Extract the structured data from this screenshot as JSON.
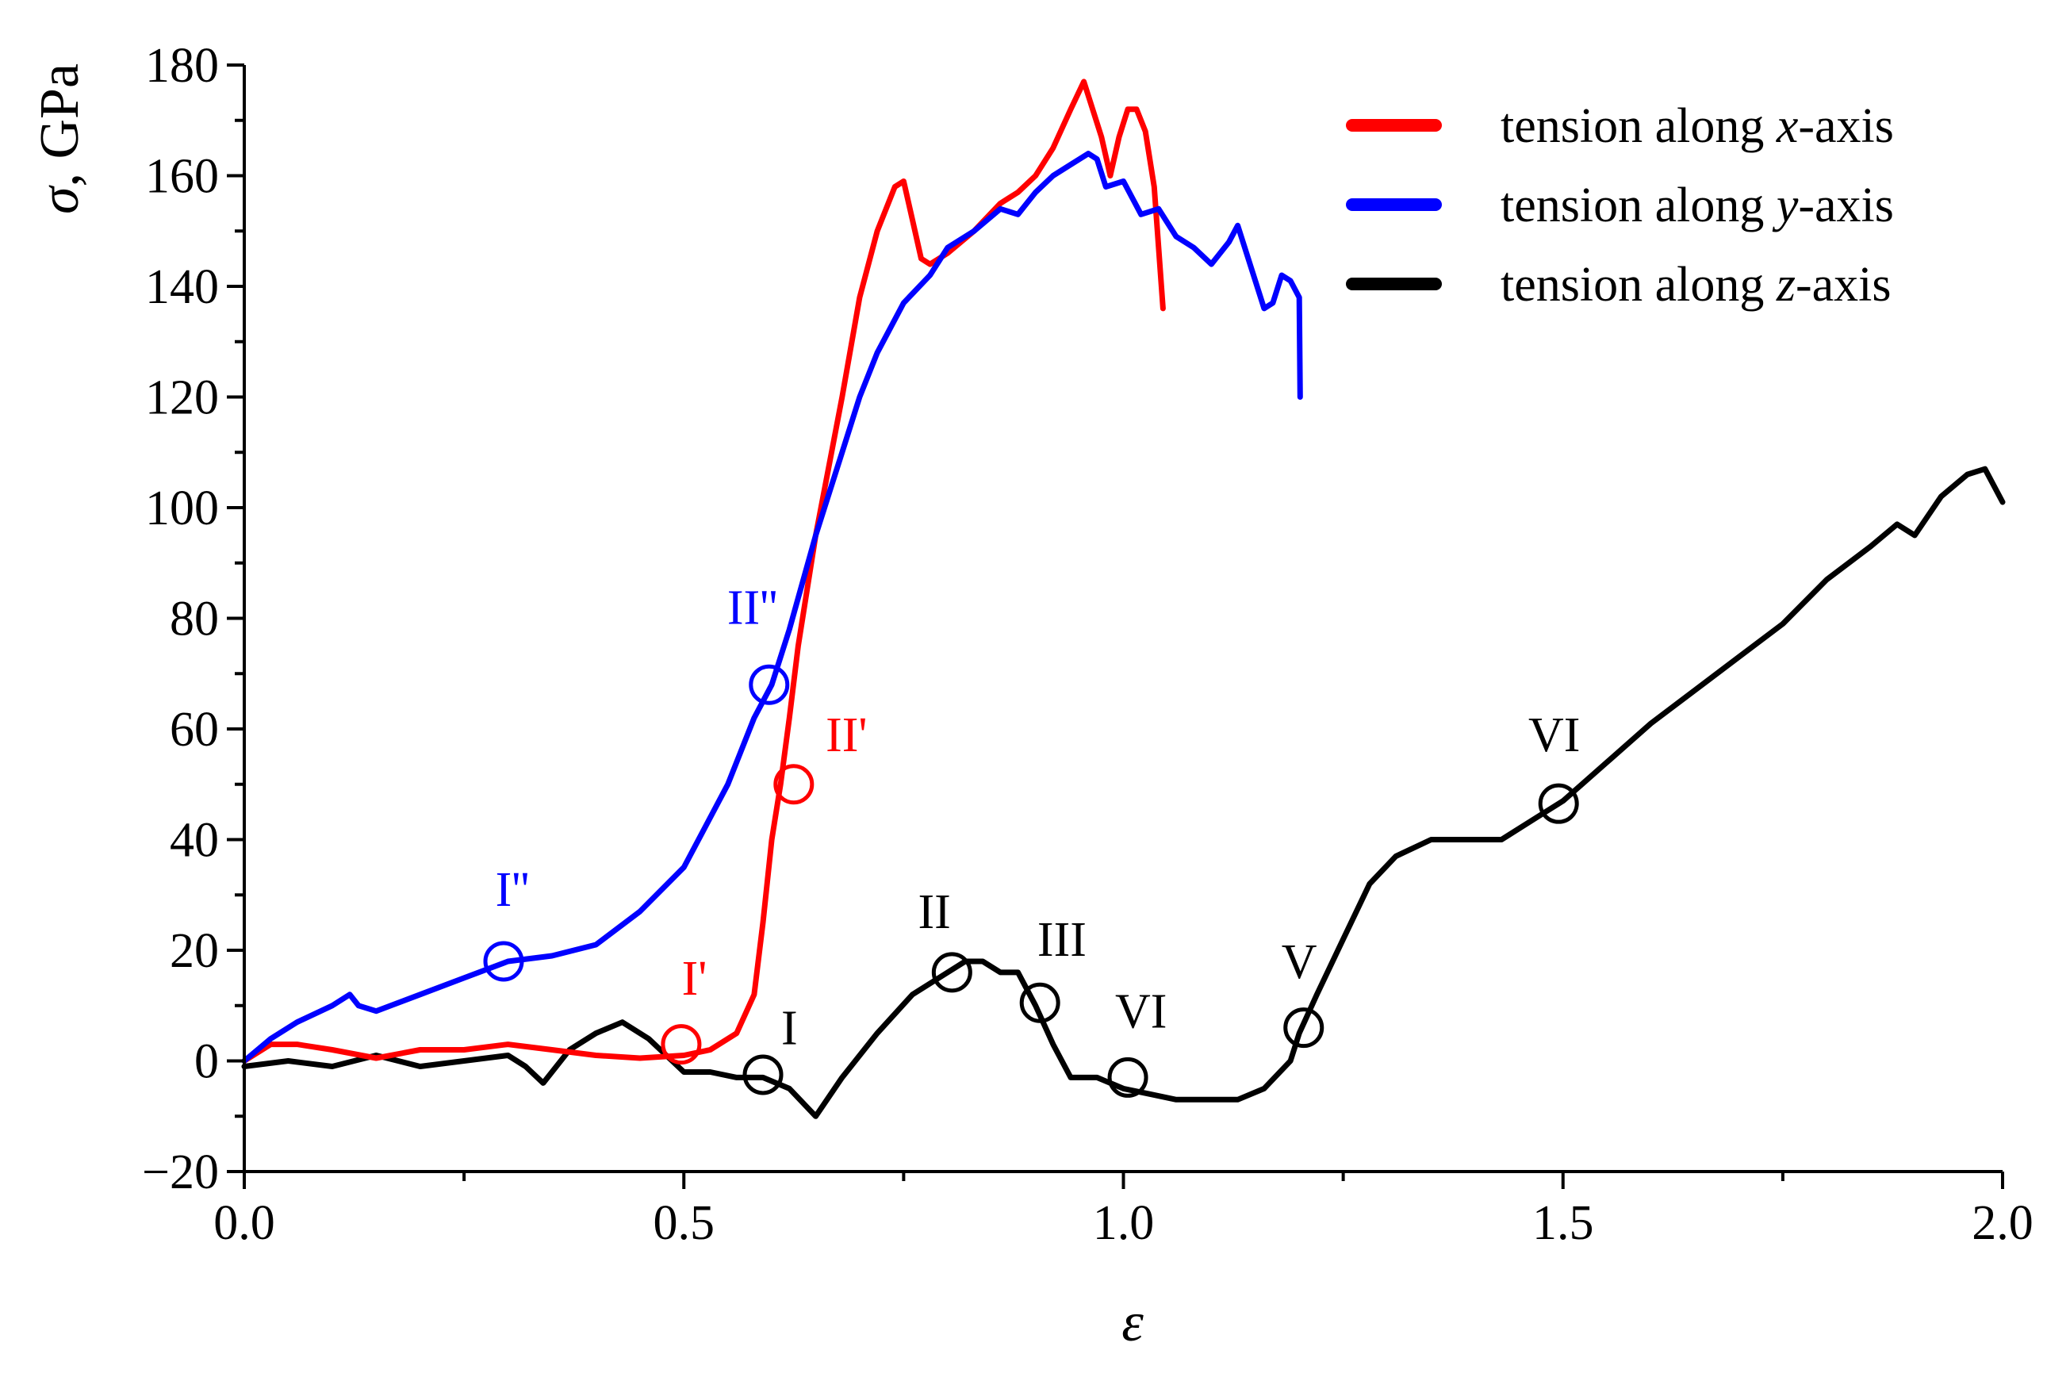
{
  "chart_data": {
    "type": "line",
    "xlabel": "ε",
    "ylabel_symbol": "σ",
    "ylabel_unit": ", GPa",
    "xlim": [
      0.0,
      2.0
    ],
    "ylim": [
      -20,
      180
    ],
    "x_ticks": [
      0.0,
      0.5,
      1.0,
      1.5,
      2.0
    ],
    "x_tick_labels": [
      "0.0",
      "0.5",
      "1.0",
      "1.5",
      "2.0"
    ],
    "y_ticks": [
      -20,
      0,
      20,
      40,
      60,
      80,
      100,
      120,
      140,
      160,
      180
    ],
    "y_tick_labels": [
      "−20",
      "0",
      "20",
      "40",
      "60",
      "80",
      "100",
      "120",
      "140",
      "160",
      "180"
    ],
    "grid": false,
    "legend_position": "top-right",
    "legend": [
      {
        "prefix": "tension along ",
        "axis": "x",
        "suffix": "-axis",
        "color": "#ff0000"
      },
      {
        "prefix": "tension along ",
        "axis": "y",
        "suffix": "-axis",
        "color": "#0000ff"
      },
      {
        "prefix": "tension along ",
        "axis": "z",
        "suffix": "-axis",
        "color": "#000000"
      }
    ],
    "series": [
      {
        "color": "#ff0000",
        "x": [
          0.0,
          0.03,
          0.06,
          0.1,
          0.15,
          0.2,
          0.25,
          0.3,
          0.35,
          0.4,
          0.45,
          0.5,
          0.53,
          0.56,
          0.58,
          0.59,
          0.6,
          0.61,
          0.62,
          0.63,
          0.65,
          0.68,
          0.7,
          0.72,
          0.74,
          0.75,
          0.76,
          0.77,
          0.78,
          0.8,
          0.83,
          0.86,
          0.88,
          0.9,
          0.92,
          0.94,
          0.955,
          0.965,
          0.975,
          0.985,
          0.995,
          1.005,
          1.015,
          1.025,
          1.035,
          1.045
        ],
        "y": [
          0,
          3,
          3,
          2,
          0.5,
          2,
          2,
          3,
          2,
          1,
          0.5,
          1,
          2,
          5,
          12,
          25,
          40,
          50,
          62,
          75,
          95,
          120,
          138,
          150,
          158,
          159,
          152,
          145,
          144,
          146,
          150,
          155,
          157,
          160,
          165,
          172,
          177,
          172,
          167,
          160,
          167,
          172,
          172,
          168,
          158,
          136
        ]
      },
      {
        "color": "#0000ff",
        "x": [
          0.0,
          0.03,
          0.06,
          0.1,
          0.12,
          0.13,
          0.15,
          0.2,
          0.25,
          0.3,
          0.35,
          0.4,
          0.45,
          0.5,
          0.55,
          0.58,
          0.6,
          0.62,
          0.65,
          0.68,
          0.7,
          0.72,
          0.75,
          0.78,
          0.8,
          0.83,
          0.86,
          0.88,
          0.9,
          0.92,
          0.94,
          0.96,
          0.97,
          0.98,
          1.0,
          1.02,
          1.04,
          1.06,
          1.08,
          1.1,
          1.12,
          1.13,
          1.14,
          1.16,
          1.17,
          1.18,
          1.19,
          1.2,
          1.201
        ],
        "y": [
          0,
          4,
          7,
          10,
          12,
          10,
          9,
          12,
          15,
          18,
          19,
          21,
          27,
          35,
          50,
          62,
          68,
          78,
          95,
          110,
          120,
          128,
          137,
          142,
          147,
          150,
          154,
          153,
          157,
          160,
          162,
          164,
          163,
          158,
          159,
          153,
          154,
          149,
          147,
          144,
          148,
          151,
          146,
          136,
          137,
          142,
          141,
          138,
          120
        ]
      },
      {
        "color": "#000000",
        "x": [
          0.0,
          0.05,
          0.1,
          0.15,
          0.2,
          0.25,
          0.3,
          0.32,
          0.34,
          0.37,
          0.4,
          0.43,
          0.46,
          0.48,
          0.5,
          0.53,
          0.56,
          0.59,
          0.62,
          0.65,
          0.68,
          0.72,
          0.76,
          0.8,
          0.82,
          0.84,
          0.86,
          0.88,
          0.9,
          0.92,
          0.94,
          0.95,
          0.97,
          1.0,
          1.03,
          1.06,
          1.1,
          1.13,
          1.16,
          1.19,
          1.2,
          1.22,
          1.25,
          1.28,
          1.31,
          1.35,
          1.38,
          1.4,
          1.43,
          1.47,
          1.5,
          1.55,
          1.6,
          1.65,
          1.7,
          1.75,
          1.8,
          1.85,
          1.88,
          1.9,
          1.93,
          1.96,
          1.98,
          2.0
        ],
        "y": [
          -1,
          0,
          -1,
          1,
          -1,
          0,
          1,
          -1,
          -4,
          2,
          5,
          7,
          4,
          1,
          -2,
          -2,
          -3,
          -3,
          -5,
          -10,
          -3,
          5,
          12,
          16,
          18,
          18,
          16,
          16,
          10,
          3,
          -3,
          -3,
          -3,
          -5,
          -6,
          -7,
          -7,
          -7,
          -5,
          0,
          5,
          12,
          22,
          32,
          37,
          40,
          40,
          40,
          40,
          44,
          47,
          54,
          61,
          67,
          73,
          79,
          87,
          93,
          97,
          95,
          102,
          106,
          107,
          101
        ]
      }
    ],
    "annotations": [
      {
        "label": "I''",
        "color": "#0000ff",
        "x": 0.295,
        "y": 18,
        "label_at": [
          0.305,
          28
        ]
      },
      {
        "label": "II''",
        "color": "#0000ff",
        "x": 0.597,
        "y": 68,
        "label_at": [
          0.578,
          79
        ]
      },
      {
        "label": "I'",
        "color": "#ff0000",
        "x": 0.497,
        "y": 3,
        "label_at": [
          0.512,
          12
        ]
      },
      {
        "label": "II'",
        "color": "#ff0000",
        "x": 0.625,
        "y": 50,
        "label_at": [
          0.685,
          56
        ]
      },
      {
        "label": "I",
        "color": "#000000",
        "x": 0.59,
        "y": -2.5,
        "label_at": [
          0.62,
          3
        ]
      },
      {
        "label": "II",
        "color": "#000000",
        "x": 0.805,
        "y": 16,
        "label_at": [
          0.785,
          24
        ]
      },
      {
        "label": "III",
        "color": "#000000",
        "x": 0.905,
        "y": 10.5,
        "label_at": [
          0.93,
          19
        ]
      },
      {
        "label": "VI",
        "color": "#000000",
        "x": 1.005,
        "y": -3,
        "label_at": [
          1.02,
          6
        ]
      },
      {
        "label": "V",
        "color": "#000000",
        "x": 1.205,
        "y": 6,
        "label_at": [
          1.2,
          15
        ]
      },
      {
        "label": "VI",
        "color": "#000000",
        "x": 1.495,
        "y": 46.5,
        "label_at": [
          1.49,
          56
        ]
      }
    ]
  }
}
